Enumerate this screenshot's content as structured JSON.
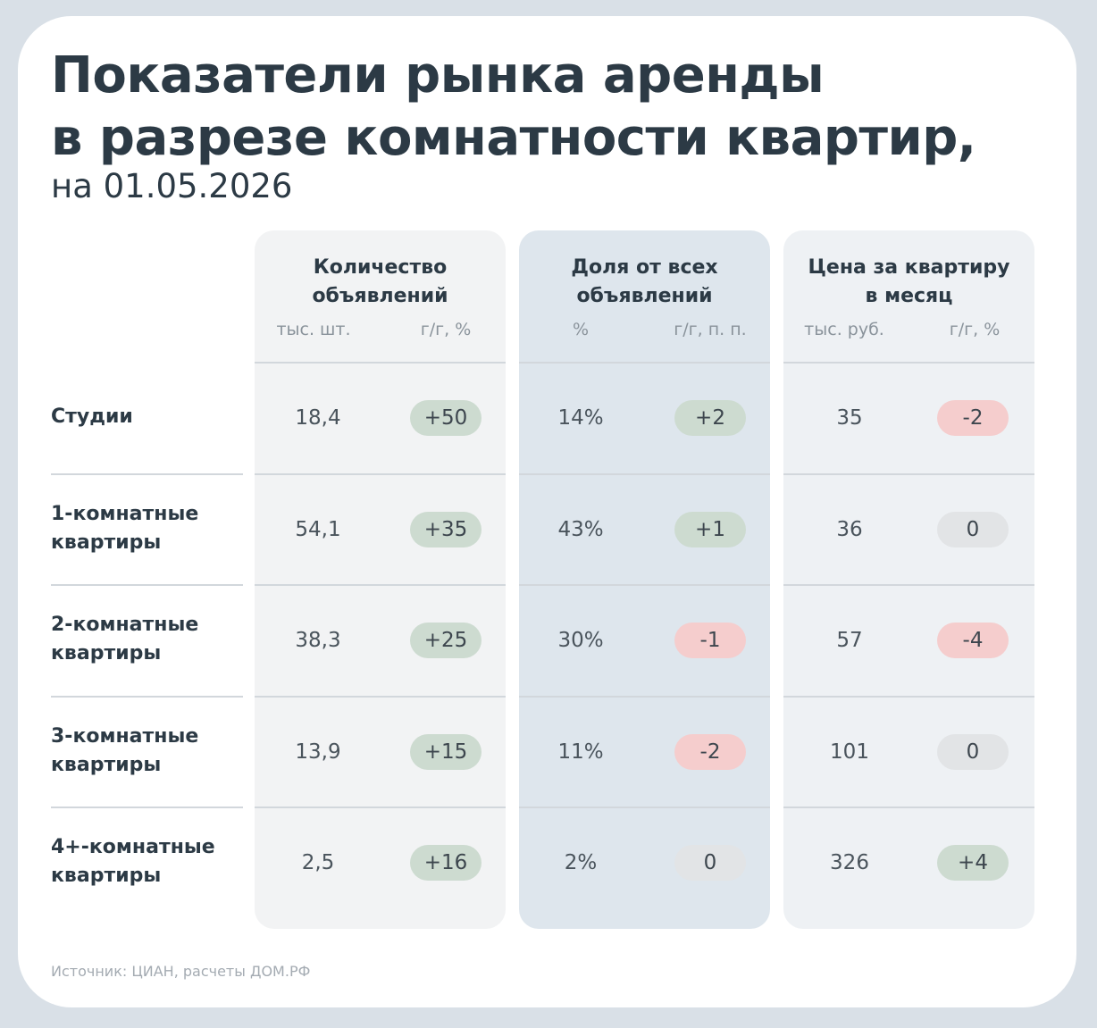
{
  "title_lines": [
    "Показатели рынка аренды",
    "в разрезе комнатности квартир,"
  ],
  "subtitle": "на 01.05.2026",
  "source": "Источник: ЦИАН, расчеты ДОМ.РФ",
  "colors": {
    "positive": "#cddbd0",
    "negative": "#f5cdcd",
    "neutral": "#e2e4e6",
    "column_1_bg": "#f2f3f4",
    "column_2_bg": "#dee6ed",
    "column_3_bg": "#eef1f4"
  },
  "chart_data": {
    "type": "table",
    "columns": [
      {
        "header": "Количество объявлений",
        "header_lines": [
          "Количество",
          "объявлений"
        ],
        "value_unit": "тыс. шт.",
        "change_unit": "г/г, %"
      },
      {
        "header": "Доля от всех объявлений",
        "header_lines": [
          "Доля от всех",
          "объявлений"
        ],
        "value_unit": "%",
        "change_unit": "г/г, п. п."
      },
      {
        "header": "Цена за квартиру в месяц",
        "header_lines": [
          "Цена за квартиру",
          "в месяц"
        ],
        "value_unit": "тыс. руб.",
        "change_unit": "г/г, %"
      }
    ],
    "rows": [
      {
        "label": "Студии",
        "label_lines": [
          "Студии"
        ],
        "cells": [
          {
            "value": "18,4",
            "change": "+50",
            "sign": "positive"
          },
          {
            "value": "14%",
            "change": "+2",
            "sign": "positive"
          },
          {
            "value": "35",
            "change": "-2",
            "sign": "negative"
          }
        ]
      },
      {
        "label": "1-комнатные квартиры",
        "label_lines": [
          "1-комнатные",
          "квартиры"
        ],
        "cells": [
          {
            "value": "54,1",
            "change": "+35",
            "sign": "positive"
          },
          {
            "value": "43%",
            "change": "+1",
            "sign": "positive"
          },
          {
            "value": "36",
            "change": "0",
            "sign": "neutral"
          }
        ]
      },
      {
        "label": "2-комнатные квартиры",
        "label_lines": [
          "2-комнатные",
          "квартиры"
        ],
        "cells": [
          {
            "value": "38,3",
            "change": "+25",
            "sign": "positive"
          },
          {
            "value": "30%",
            "change": "-1",
            "sign": "negative"
          },
          {
            "value": "57",
            "change": "-4",
            "sign": "negative"
          }
        ]
      },
      {
        "label": "3-комнатные квартиры",
        "label_lines": [
          "3-комнатные",
          "квартиры"
        ],
        "cells": [
          {
            "value": "13,9",
            "change": "+15",
            "sign": "positive"
          },
          {
            "value": "11%",
            "change": "-2",
            "sign": "negative"
          },
          {
            "value": "101",
            "change": "0",
            "sign": "neutral"
          }
        ]
      },
      {
        "label": "4+-комнатные квартиры",
        "label_lines": [
          "4+-комнатные",
          "квартиры"
        ],
        "cells": [
          {
            "value": "2,5",
            "change": "+16",
            "sign": "positive"
          },
          {
            "value": "2%",
            "change": "0",
            "sign": "neutral"
          },
          {
            "value": "326",
            "change": "+4",
            "sign": "positive"
          }
        ]
      }
    ]
  }
}
